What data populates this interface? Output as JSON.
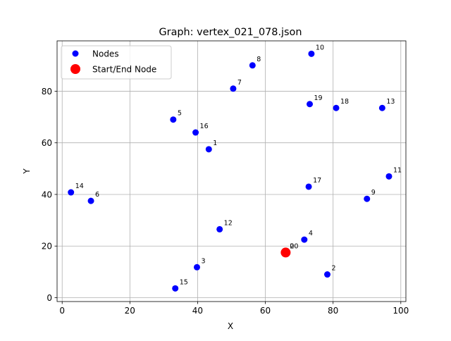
{
  "chart_data": {
    "type": "scatter",
    "title": "Graph: vertex_021_078.json",
    "xlabel": "X",
    "ylabel": "Y",
    "xlim": [
      -1.5,
      101.5
    ],
    "ylim": [
      -1.5,
      99.5
    ],
    "xticks": [
      0,
      20,
      40,
      60,
      80,
      100
    ],
    "yticks": [
      0,
      20,
      40,
      60,
      80
    ],
    "grid": true,
    "legend_position": "top-left",
    "colors": {
      "nodes": "#0000ff",
      "start_end": "#ff0000",
      "grid": "#b0b0b0"
    },
    "series": [
      {
        "name": "Nodes",
        "points": [
          {
            "label": "0",
            "x": 66.0,
            "y": 17.5
          },
          {
            "label": "1",
            "x": 43.3,
            "y": 57.5
          },
          {
            "label": "2",
            "x": 78.3,
            "y": 9.0
          },
          {
            "label": "3",
            "x": 39.8,
            "y": 11.8
          },
          {
            "label": "4",
            "x": 71.5,
            "y": 22.5
          },
          {
            "label": "5",
            "x": 32.8,
            "y": 69.0
          },
          {
            "label": "6",
            "x": 8.5,
            "y": 37.5
          },
          {
            "label": "7",
            "x": 50.5,
            "y": 81.0
          },
          {
            "label": "8",
            "x": 56.2,
            "y": 90.0
          },
          {
            "label": "9",
            "x": 90.0,
            "y": 38.3
          },
          {
            "label": "10",
            "x": 73.6,
            "y": 94.5
          },
          {
            "label": "11",
            "x": 96.5,
            "y": 47.0
          },
          {
            "label": "12",
            "x": 46.5,
            "y": 26.5
          },
          {
            "label": "13",
            "x": 94.5,
            "y": 73.5
          },
          {
            "label": "14",
            "x": 2.6,
            "y": 40.8
          },
          {
            "label": "15",
            "x": 33.4,
            "y": 3.6
          },
          {
            "label": "16",
            "x": 39.4,
            "y": 64.0
          },
          {
            "label": "17",
            "x": 72.8,
            "y": 43.0
          },
          {
            "label": "18",
            "x": 80.9,
            "y": 73.5
          },
          {
            "label": "19",
            "x": 73.1,
            "y": 75.0
          },
          {
            "label": "20",
            "x": 66.0,
            "y": 17.5
          }
        ]
      },
      {
        "name": "Start/End Node",
        "points": [
          {
            "label": "",
            "x": 66.0,
            "y": 17.5
          }
        ]
      }
    ]
  }
}
